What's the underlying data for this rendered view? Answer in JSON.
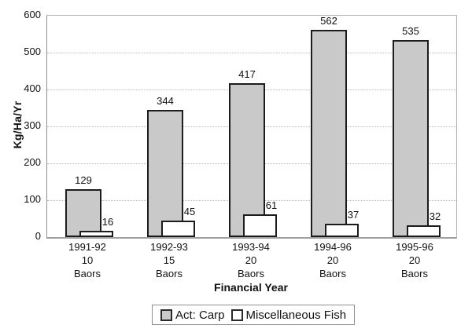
{
  "chart_data": {
    "type": "bar",
    "title": "",
    "xlabel": "Financial Year",
    "ylabel": "Kg/Ha/Yr",
    "ylim": [
      0,
      600
    ],
    "ytick_interval": 100,
    "yticks": [
      0,
      100,
      200,
      300,
      400,
      500,
      600
    ],
    "grid": "horizontal-dotted",
    "legend_position": "bottom-center",
    "bar_overlap": true,
    "categories": [
      {
        "lines": [
          "1991-92",
          "10",
          "Baors"
        ]
      },
      {
        "lines": [
          "1992-93",
          "15",
          "Baors"
        ]
      },
      {
        "lines": [
          "1993-94",
          "20",
          "Baors"
        ]
      },
      {
        "lines": [
          "1994-96",
          "20",
          "Baors"
        ]
      },
      {
        "lines": [
          "1995-96",
          "20",
          "Baors"
        ]
      }
    ],
    "series": [
      {
        "name": "Act: Carp",
        "fill": "#c9c9c9",
        "values": [
          129,
          344,
          417,
          562,
          535
        ]
      },
      {
        "name": "Miscellaneous Fish",
        "fill": "#ffffff",
        "values": [
          16,
          45,
          61,
          37,
          32
        ]
      }
    ],
    "colors": {
      "bar_border": "#1c1c1c",
      "axis_line": "#8f8f8f",
      "plot_border": "#b3b3b3",
      "gridline": "#b9b9b9",
      "text": "#111111"
    }
  }
}
